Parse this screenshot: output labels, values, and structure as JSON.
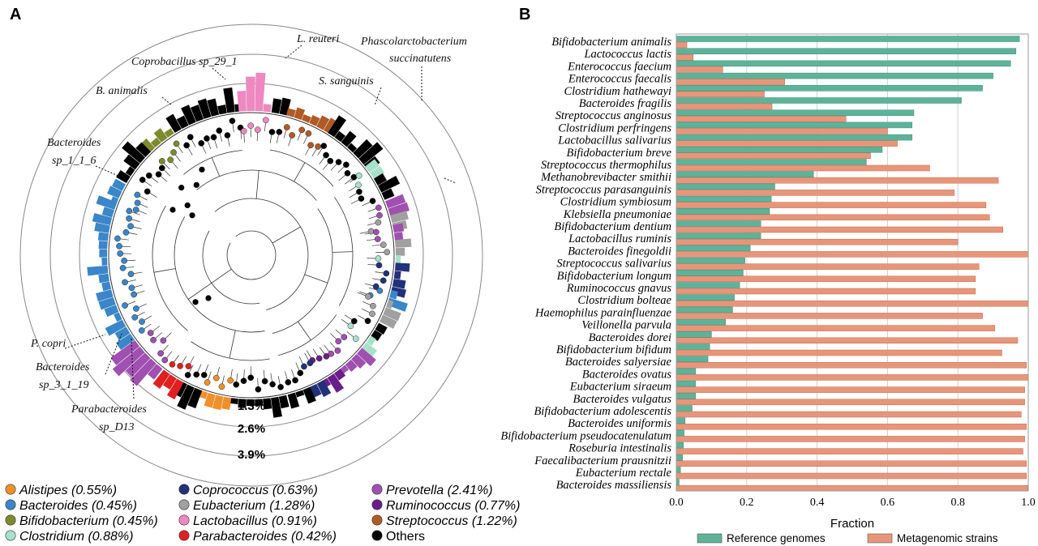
{
  "chart_data": [
    {
      "type": "circular-phylogenetic-tree",
      "panel": "A",
      "ring_labels": [
        "1.3%",
        "2.6%",
        "3.9%"
      ],
      "tree_annotations": [
        "L. reuteri",
        "Phascolarctobacterium succinatutens",
        "Coprobacillus sp_29_1",
        "B. animalis",
        "S. sanguinis",
        "Bacteroides sp_1_1_6",
        "P. copri",
        "Bacteroides sp_3_1_19",
        "Parabacteroides sp_D13"
      ],
      "legend": [
        {
          "label": "Alistipes (0.55%)",
          "color": "#F0902A"
        },
        {
          "label": "Bacteroides (0.45%)",
          "color": "#3A86C8"
        },
        {
          "label": "Bifidobacterium (0.45%)",
          "color": "#7E8A2E"
        },
        {
          "label": "Clostridium (0.88%)",
          "color": "#A8E0CC"
        },
        {
          "label": "Coprococcus (0.63%)",
          "color": "#23307A"
        },
        {
          "label": "Eubacterium (1.28%)",
          "color": "#A0A0A0"
        },
        {
          "label": "Lactobacillus (0.91%)",
          "color": "#EE88C0"
        },
        {
          "label": "Parabacteroides (0.42%)",
          "color": "#E02020"
        },
        {
          "label": "Prevotella (2.41%)",
          "color": "#A050B0"
        },
        {
          "label": "Ruminococcus (0.77%)",
          "color": "#6A1E8A"
        },
        {
          "label": "Streptococcus (1.22%)",
          "color": "#B05A26"
        },
        {
          "label": "Others",
          "color": "#000000"
        }
      ]
    },
    {
      "type": "bar",
      "panel": "B",
      "orientation": "horizontal",
      "categories": [
        "Bifidobacterium animalis",
        "Lactococcus lactis",
        "Enterococcus faecium",
        "Enterococcus faecalis",
        "Clostridium hathewayi",
        "Bacteroides fragilis",
        "Streptococcus anginosus",
        "Clostridium perfringens",
        "Lactobacillus salivarius",
        "Bifidobacterium breve",
        "Streptococcus thermophilus",
        "Methanobrevibacter smithii",
        "Streptococcus parasanguinis",
        "Clostridium symbiosum",
        "Klebsiella pneumoniae",
        "Bifidobacterium dentium",
        "Lactobacillus ruminis",
        "Bacteroides finegoldii",
        "Streptococcus salivarius",
        "Bifidobacterium longum",
        "Ruminococcus gnavus",
        "Clostridium bolteae",
        "Haemophilus parainfluenzae",
        "Veillonella parvula",
        "Bacteroides dorei",
        "Bifidobacterium bifidum",
        "Bacteroides salyersiae",
        "Bacteroides ovatus",
        "Eubacterium siraeum",
        "Bacteroides vulgatus",
        "Bifidobacterium adolescentis",
        "Bacteroides uniformis",
        "Bifidobacterium pseudocatenulatum",
        "Roseburia intestinalis",
        "Faecalibacterium prausnitzii",
        "Eubacterium rectale",
        "Bacteroides massiliensis"
      ],
      "series": [
        {
          "name": "Reference genomes",
          "color": "#5DB39A",
          "values": [
            0.975,
            0.965,
            0.95,
            0.9,
            0.87,
            0.81,
            0.675,
            0.67,
            0.67,
            0.585,
            0.54,
            0.39,
            0.28,
            0.27,
            0.265,
            0.24,
            0.24,
            0.21,
            0.195,
            0.19,
            0.18,
            0.165,
            0.16,
            0.14,
            0.1,
            0.095,
            0.09,
            0.055,
            0.055,
            0.055,
            0.045,
            0.025,
            0.022,
            0.02,
            0.018,
            0.012,
            0.008
          ]
        },
        {
          "name": "Metagenomic strains",
          "color": "#E8967A",
          "values": [
            0.03,
            0.048,
            0.132,
            0.308,
            0.25,
            0.272,
            0.482,
            0.6,
            0.628,
            0.552,
            0.72,
            0.915,
            0.79,
            0.88,
            0.89,
            0.928,
            0.8,
            1.0,
            0.86,
            0.85,
            0.85,
            1.0,
            0.87,
            0.905,
            0.97,
            0.925,
            0.995,
            1.0,
            0.99,
            0.99,
            0.98,
            0.995,
            0.99,
            0.985,
            0.995,
            0.995,
            0.998
          ]
        }
      ],
      "xlabel": "Fraction",
      "ylabel": "",
      "xlim": [
        0,
        1.0
      ],
      "xticks": [
        "0.0",
        "0.2",
        "0.4",
        "0.6",
        "0.8",
        "1.0"
      ],
      "grid": true,
      "legend_position": "bottom"
    }
  ],
  "panels": {
    "a_letter": "A",
    "b_letter": "B"
  }
}
